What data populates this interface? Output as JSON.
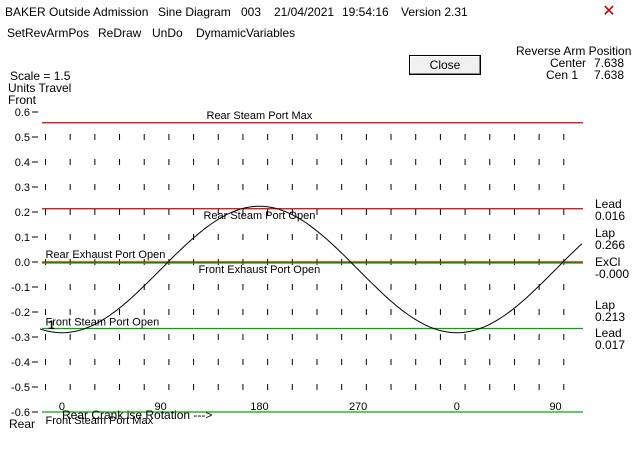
{
  "window": {
    "app": "BAKER Outside Admission",
    "diagram": "Sine Diagram",
    "id": "003",
    "date": "21/04/2021",
    "time": "19:54:16",
    "version": "Version 2.31",
    "close_glyph": "✕"
  },
  "menu": [
    "SetRevArmPos",
    "ReDraw",
    "UnDo",
    "DymamicVariables"
  ],
  "close_button_label": "Close",
  "reverse_arm": {
    "title": "Reverse Arm Positions",
    "rows": [
      {
        "label": "Center",
        "value": "7.638"
      },
      {
        "label": "Cen  1",
        "value": "7.638"
      }
    ]
  },
  "left_labels": {
    "scale": "Scale = 1.5",
    "units": "Units Travel",
    "front": "Front",
    "rear": "Rear"
  },
  "side_values": [
    {
      "label": "Lead",
      "value": "0.016"
    },
    {
      "label": "Lap",
      "value": "0.266"
    },
    {
      "label": "ExCl",
      "value": "-0.000"
    },
    {
      "label": "Lap",
      "value": "0.213"
    },
    {
      "label": "Lead",
      "value": "0.017"
    }
  ],
  "cursor_marker": "1",
  "bottom_overlap_text": "Rear Crank  ise Rotation --->",
  "chart_data": {
    "type": "line",
    "title": "",
    "xlabel": "",
    "ylabel": "Units Travel",
    "ylim": [
      -0.6,
      0.6
    ],
    "y_ticks": [
      "0.6",
      "0.5",
      "0.4",
      "0.3",
      "0.2",
      "0.1",
      "0.0",
      "-0.1",
      "-0.2",
      "-0.3",
      "-0.4",
      "-0.5",
      "-0.6"
    ],
    "x_ticks": [
      "0",
      "90",
      "180",
      "270",
      "0",
      "90"
    ],
    "x_tick_values": [
      0,
      90,
      180,
      270,
      360,
      450
    ],
    "xlim": [
      -20,
      475
    ],
    "grid": "dotted vertical marks",
    "series": [
      {
        "name": "",
        "amplitude": 0.253,
        "offset": -0.03,
        "phase_deg": 180,
        "x_start": -20,
        "x_end": 475,
        "color": "#000000"
      }
    ],
    "reference_lines": [
      {
        "label": "Rear Steam Port Max",
        "y": 0.557,
        "color": "#cc0000"
      },
      {
        "label": "Rear Steam Port Open",
        "y": 0.213,
        "color": "#cc0000"
      },
      {
        "label": "Rear Exhaust Port Open",
        "y": 0.0,
        "color": "#cc0000"
      },
      {
        "label": "Front Exhaust Port Open",
        "y": 0.0,
        "color": "#00aa00"
      },
      {
        "label": "Front Steam Port Open",
        "y": -0.266,
        "color": "#00aa00"
      },
      {
        "label": "Front Steam Port Max",
        "y": -0.6,
        "color": "#00aa00"
      }
    ]
  }
}
